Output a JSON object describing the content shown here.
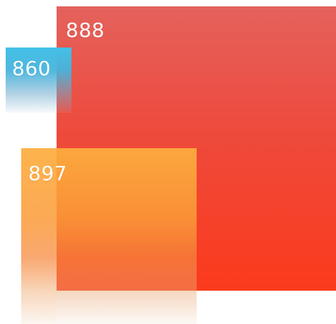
{
  "tiles": [
    {
      "id": "red",
      "label": "888",
      "color": "#ee4a3c"
    },
    {
      "id": "blue",
      "label": "860",
      "color": "#43c0e8"
    },
    {
      "id": "orange",
      "label": "897",
      "color": "#fcaa3e"
    }
  ]
}
